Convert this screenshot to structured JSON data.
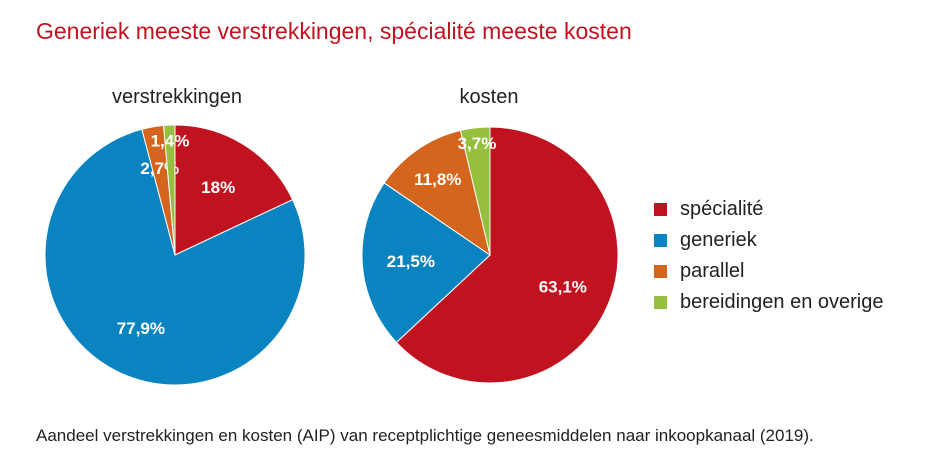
{
  "title": "Generiek meeste verstrekkingen, spécialité meeste kosten",
  "caption": "Aandeel verstrekkingen en kosten (AIP) van receptplichtige geneesmiddelen naar inkoopkanaal (2019).",
  "colors": {
    "specialite": "#c1121f",
    "generiek": "#0a84c1",
    "parallel": "#d3651c",
    "bereidingen": "#95bf3c"
  },
  "legend": [
    {
      "label": "spécialité",
      "key": "specialite"
    },
    {
      "label": "generiek",
      "key": "generiek"
    },
    {
      "label": "parallel",
      "key": "parallel"
    },
    {
      "label": "bereidingen en overige",
      "key": "bereidingen"
    }
  ],
  "chart_data": [
    {
      "type": "pie",
      "title": "verstrekkingen",
      "slices": [
        {
          "category": "spécialité",
          "key": "specialite",
          "value": 18,
          "label": "18%"
        },
        {
          "category": "generiek",
          "key": "generiek",
          "value": 77.9,
          "label": "77,9%"
        },
        {
          "category": "parallel",
          "key": "parallel",
          "value": 2.7,
          "label": "2,7%"
        },
        {
          "category": "bereidingen en overige",
          "key": "bereidingen",
          "value": 1.4,
          "label": "1,4%"
        }
      ]
    },
    {
      "type": "pie",
      "title": "kosten",
      "slices": [
        {
          "category": "spécialité",
          "key": "specialite",
          "value": 63.1,
          "label": "63,1%"
        },
        {
          "category": "generiek",
          "key": "generiek",
          "value": 21.5,
          "label": "21,5%"
        },
        {
          "category": "parallel",
          "key": "parallel",
          "value": 11.8,
          "label": "11,8%"
        },
        {
          "category": "bereidingen en overige",
          "key": "bereidingen",
          "value": 3.7,
          "label": "3,7%"
        }
      ]
    }
  ]
}
